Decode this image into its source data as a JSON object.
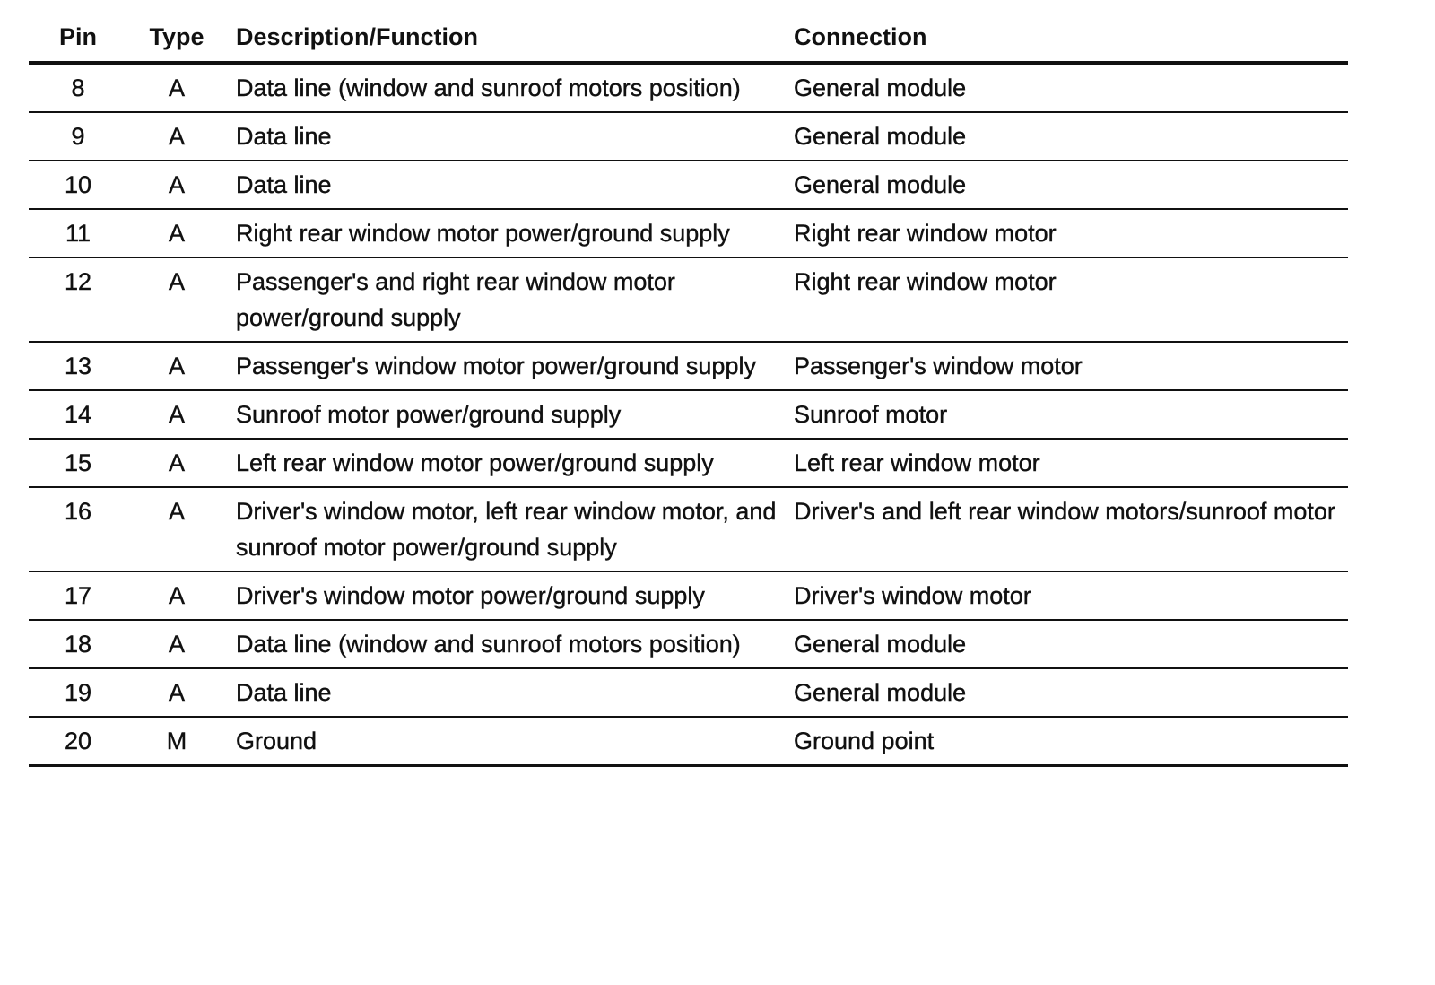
{
  "table": {
    "headers": [
      "Pin",
      "Type",
      "Description/Function",
      "Connection"
    ],
    "rows": [
      {
        "pin": "8",
        "type": "A",
        "description": "Data line (window and sunroof motors position)",
        "connection": "General module"
      },
      {
        "pin": "9",
        "type": "A",
        "description": "Data line",
        "connection": "General module"
      },
      {
        "pin": "10",
        "type": "A",
        "description": "Data line",
        "connection": "General module"
      },
      {
        "pin": "11",
        "type": "A",
        "description": "Right rear window motor power/ground supply",
        "connection": "Right rear window motor"
      },
      {
        "pin": "12",
        "type": "A",
        "description": "Passenger's and right rear window motor power/ground supply",
        "connection": "Right rear window motor"
      },
      {
        "pin": "13",
        "type": "A",
        "description": "Passenger's window motor power/ground supply",
        "connection": "Passenger's window motor"
      },
      {
        "pin": "14",
        "type": "A",
        "description": "Sunroof motor power/ground supply",
        "connection": "Sunroof motor"
      },
      {
        "pin": "15",
        "type": "A",
        "description": "Left rear window motor power/ground supply",
        "connection": "Left rear window motor"
      },
      {
        "pin": "16",
        "type": "A",
        "description": "Driver's window motor, left rear window motor, and sunroof motor power/ground supply",
        "connection": "Driver's and left rear window motors/sunroof motor"
      },
      {
        "pin": "17",
        "type": "A",
        "description": "Driver's window motor power/ground supply",
        "connection": "Driver's window motor"
      },
      {
        "pin": "18",
        "type": "A",
        "description": "Data line (window and sunroof motors position)",
        "connection": "General module"
      },
      {
        "pin": "19",
        "type": "A",
        "description": "Data line",
        "connection": "General module"
      },
      {
        "pin": "20",
        "type": "M",
        "description": "Ground",
        "connection": "Ground point"
      }
    ]
  }
}
